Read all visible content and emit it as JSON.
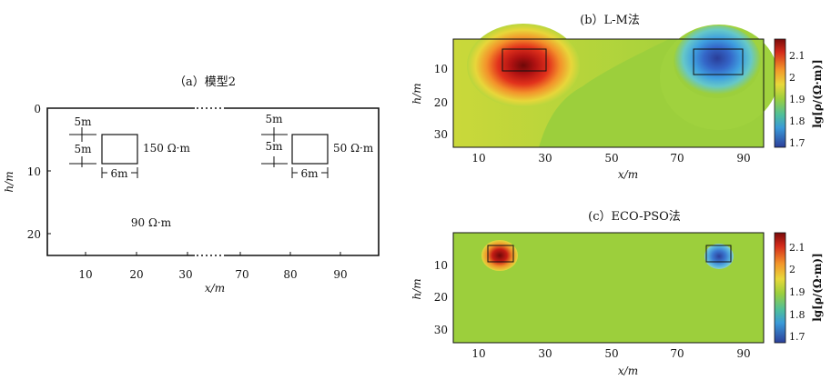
{
  "panel_a": {
    "title": "（a）模型2",
    "ylabel": "h/m",
    "xlabel": "x/m",
    "x_ticks": [
      "10",
      "20",
      "30",
      "70",
      "80",
      "90"
    ],
    "y_ticks": [
      "0",
      "10",
      "20"
    ],
    "dim_5m_top": "5m",
    "dim_5m_mid": "5m",
    "dim_6m": "6m",
    "block1_label": "150 Ω·m",
    "block2_label": "50 Ω·m",
    "background_label": "90 Ω·m"
  },
  "panel_b": {
    "title": "(b）L-M法",
    "ylabel": "h/m",
    "xlabel": "x/m",
    "x_ticks": [
      "10",
      "30",
      "50",
      "70",
      "90"
    ],
    "y_ticks": [
      "10",
      "20",
      "30"
    ],
    "colorbar_ticks": [
      "2.1",
      "2",
      "1.9",
      "1.8",
      "1.7"
    ],
    "colorbar_label": "lg[ρ/(Ω·m)]"
  },
  "panel_c": {
    "title": "(c）ECO-PSO法",
    "ylabel": "h/m",
    "xlabel": "x/m",
    "x_ticks": [
      "10",
      "30",
      "50",
      "70",
      "90"
    ],
    "y_ticks": [
      "10",
      "20",
      "30"
    ],
    "colorbar_ticks": [
      "2.1",
      "2",
      "1.9",
      "1.8",
      "1.7"
    ],
    "colorbar_label": "lg[ρ/(Ω·m)]"
  },
  "colors": {
    "background_green": "#9ccf3c",
    "high": "#8a0f0f",
    "low": "#2c3f9a"
  }
}
